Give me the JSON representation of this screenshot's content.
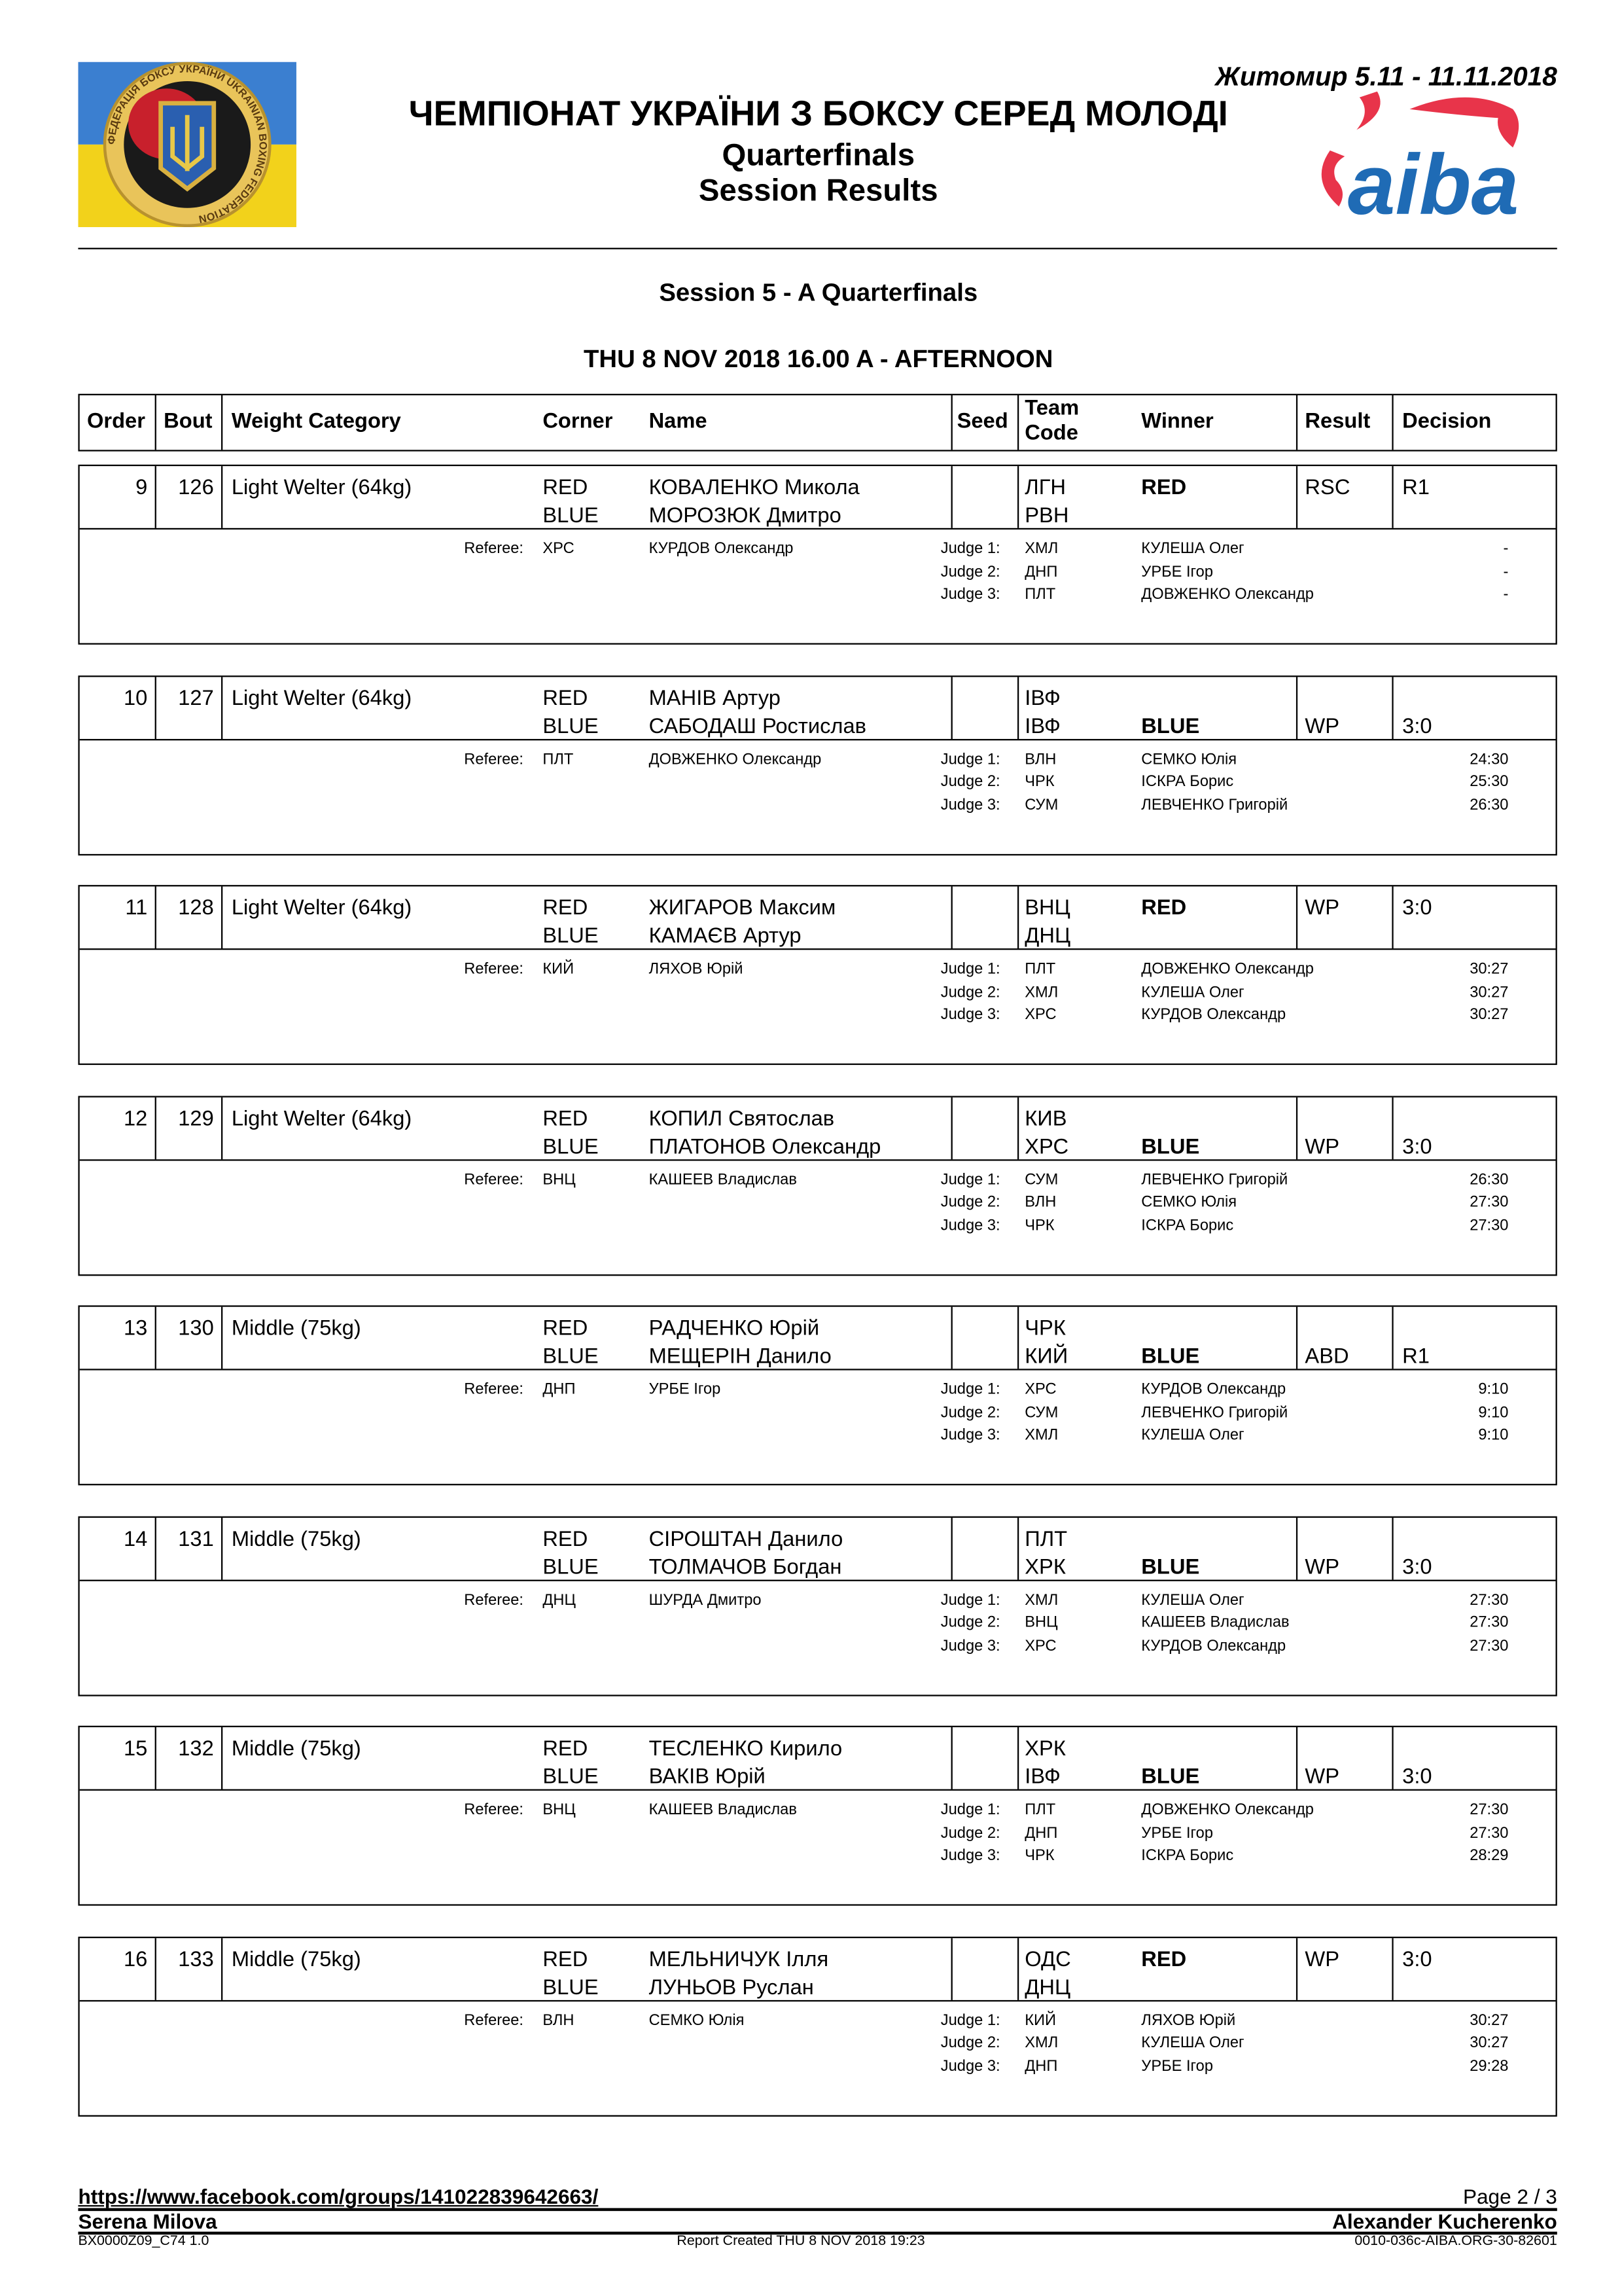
{
  "header": {
    "championship": "ЧЕМПІОНАТ УКРАЇНИ З БОКСУ СЕРЕД МОЛОДІ",
    "phase": "Quarterfinals",
    "report": "Session Results",
    "location_dates": "Житомир 5.11 - 11.11.2018",
    "left_logo_text": "ФЕДЕРАЦІЯ БОКСУ УКРАЇНИ UKRAINIAN BOXING FEDERATION",
    "right_logo_text": "aiba",
    "colors": {
      "aiba_red": "#e8344a",
      "aiba_blue": "#1f6bb5",
      "flag_blue": "#3b7fd0",
      "flag_yellow": "#f2d21b"
    }
  },
  "session": {
    "title": "Session 5 - A Quarterfinals",
    "datetime": "THU 8 NOV 2018  16.00 A - AFTERNOON"
  },
  "columns": {
    "order": "Order",
    "bout": "Bout",
    "weight": "Weight Category",
    "corner": "Corner",
    "name": "Name",
    "seed": "Seed",
    "team_code_1": "Team",
    "team_code_2": "Code",
    "winner": "Winner",
    "result": "Result",
    "decision": "Decision"
  },
  "labels": {
    "red": "RED",
    "blue": "BLUE",
    "referee": "Referee:"
  },
  "bouts": [
    {
      "order": "9",
      "bout": "126",
      "weight": "Light Welter (64kg)",
      "red": {
        "name": "КОВАЛЕНКО Микола",
        "team": "ЛГН"
      },
      "blue": {
        "name": "МОРОЗЮК Дмитро",
        "team": "РВН"
      },
      "winner": "RED",
      "result": "RSC",
      "decision": "R1",
      "referee": {
        "code": "ХРС",
        "name": "КУРДОВ Олександр"
      },
      "judges": [
        {
          "label": "Judge 1:",
          "code": "ХМЛ",
          "name": "КУЛЕША Олег",
          "score": "-"
        },
        {
          "label": "Judge 2:",
          "code": "ДНП",
          "name": "УРБЕ Ігор",
          "score": "-"
        },
        {
          "label": "Judge 3:",
          "code": "ПЛТ",
          "name": "ДОВЖЕНКО Олександр",
          "score": "-"
        }
      ]
    },
    {
      "order": "10",
      "bout": "127",
      "weight": "Light Welter (64kg)",
      "red": {
        "name": "МАНІВ Артур",
        "team": "ІВФ"
      },
      "blue": {
        "name": "САБОДАШ Ростислав",
        "team": "ІВФ"
      },
      "winner": "BLUE",
      "result": "WP",
      "decision": "3:0",
      "referee": {
        "code": "ПЛТ",
        "name": "ДОВЖЕНКО Олександр"
      },
      "judges": [
        {
          "label": "Judge 1:",
          "code": "ВЛН",
          "name": "СЕМКО Юлія",
          "score": "24:30"
        },
        {
          "label": "Judge 2:",
          "code": "ЧРК",
          "name": "ІСКРА Борис",
          "score": "25:30"
        },
        {
          "label": "Judge 3:",
          "code": "СУМ",
          "name": "ЛЕВЧЕНКО Григорій",
          "score": "26:30"
        }
      ]
    },
    {
      "order": "11",
      "bout": "128",
      "weight": "Light Welter (64kg)",
      "red": {
        "name": "ЖИГАРОВ Максим",
        "team": "ВНЦ"
      },
      "blue": {
        "name": "КАМАЄВ Артур",
        "team": "ДНЦ"
      },
      "winner": "RED",
      "result": "WP",
      "decision": "3:0",
      "referee": {
        "code": "КИЙ",
        "name": "ЛЯХОВ Юрій"
      },
      "judges": [
        {
          "label": "Judge 1:",
          "code": "ПЛТ",
          "name": "ДОВЖЕНКО Олександр",
          "score": "30:27"
        },
        {
          "label": "Judge 2:",
          "code": "ХМЛ",
          "name": "КУЛЕША Олег",
          "score": "30:27"
        },
        {
          "label": "Judge 3:",
          "code": "ХРС",
          "name": "КУРДОВ Олександр",
          "score": "30:27"
        }
      ]
    },
    {
      "order": "12",
      "bout": "129",
      "weight": "Light Welter (64kg)",
      "red": {
        "name": "КОПИЛ Святослав",
        "team": "КИВ"
      },
      "blue": {
        "name": "ПЛАТОНОВ Олександр",
        "team": "ХРС"
      },
      "winner": "BLUE",
      "result": "WP",
      "decision": "3:0",
      "referee": {
        "code": "ВНЦ",
        "name": "КАШЕЕВ Владислав"
      },
      "judges": [
        {
          "label": "Judge 1:",
          "code": "СУМ",
          "name": "ЛЕВЧЕНКО Григорій",
          "score": "26:30"
        },
        {
          "label": "Judge 2:",
          "code": "ВЛН",
          "name": "СЕМКО Юлія",
          "score": "27:30"
        },
        {
          "label": "Judge 3:",
          "code": "ЧРК",
          "name": "ІСКРА Борис",
          "score": "27:30"
        }
      ]
    },
    {
      "order": "13",
      "bout": "130",
      "weight": "Middle (75kg)",
      "red": {
        "name": "РАДЧЕНКО Юрій",
        "team": "ЧРК"
      },
      "blue": {
        "name": "МЕЩЕРІН Данило",
        "team": "КИЙ"
      },
      "winner": "BLUE",
      "result": "ABD",
      "decision": "R1",
      "referee": {
        "code": "ДНП",
        "name": "УРБЕ Ігор"
      },
      "judges": [
        {
          "label": "Judge 1:",
          "code": "ХРС",
          "name": "КУРДОВ Олександр",
          "score": "9:10"
        },
        {
          "label": "Judge 2:",
          "code": "СУМ",
          "name": "ЛЕВЧЕНКО Григорій",
          "score": "9:10"
        },
        {
          "label": "Judge 3:",
          "code": "ХМЛ",
          "name": "КУЛЕША Олег",
          "score": "9:10"
        }
      ]
    },
    {
      "order": "14",
      "bout": "131",
      "weight": "Middle (75kg)",
      "red": {
        "name": "СІРОШТАН Данило",
        "team": "ПЛТ"
      },
      "blue": {
        "name": "ТОЛМАЧОВ Богдан",
        "team": "ХРК"
      },
      "winner": "BLUE",
      "result": "WP",
      "decision": "3:0",
      "referee": {
        "code": "ДНЦ",
        "name": "ШУРДА Дмитро"
      },
      "judges": [
        {
          "label": "Judge 1:",
          "code": "ХМЛ",
          "name": "КУЛЕША Олег",
          "score": "27:30"
        },
        {
          "label": "Judge 2:",
          "code": "ВНЦ",
          "name": "КАШЕЕВ Владислав",
          "score": "27:30"
        },
        {
          "label": "Judge 3:",
          "code": "ХРС",
          "name": "КУРДОВ Олександр",
          "score": "27:30"
        }
      ]
    },
    {
      "order": "15",
      "bout": "132",
      "weight": "Middle (75kg)",
      "red": {
        "name": "ТЕСЛЕНКО Кирило",
        "team": "ХРК"
      },
      "blue": {
        "name": "ВАКІВ Юрій",
        "team": "ІВФ"
      },
      "winner": "BLUE",
      "result": "WP",
      "decision": "3:0",
      "referee": {
        "code": "ВНЦ",
        "name": "КАШЕЕВ Владислав"
      },
      "judges": [
        {
          "label": "Judge 1:",
          "code": "ПЛТ",
          "name": "ДОВЖЕНКО Олександр",
          "score": "27:30"
        },
        {
          "label": "Judge 2:",
          "code": "ДНП",
          "name": "УРБЕ Ігор",
          "score": "27:30"
        },
        {
          "label": "Judge 3:",
          "code": "ЧРК",
          "name": "ІСКРА Борис",
          "score": "28:29"
        }
      ]
    },
    {
      "order": "16",
      "bout": "133",
      "weight": "Middle (75kg)",
      "red": {
        "name": "МЕЛЬНИЧУК Ілля",
        "team": "ОДС"
      },
      "blue": {
        "name": "ЛУНЬОВ Руслан",
        "team": "ДНЦ"
      },
      "winner": "RED",
      "result": "WP",
      "decision": "3:0",
      "referee": {
        "code": "ВЛН",
        "name": "СЕМКО Юлія"
      },
      "judges": [
        {
          "label": "Judge 1:",
          "code": "КИЙ",
          "name": "ЛЯХОВ Юрій",
          "score": "30:27"
        },
        {
          "label": "Judge 2:",
          "code": "ХМЛ",
          "name": "КУЛЕША Олег",
          "score": "30:27"
        },
        {
          "label": "Judge 3:",
          "code": "ДНП",
          "name": "УРБЕ Ігор",
          "score": "29:28"
        }
      ]
    }
  ],
  "footer": {
    "link": "https://www.facebook.com/groups/141022839642663/",
    "page": "Page 2 / 3",
    "left_name": "Serena Milova",
    "right_name": "Alexander Kucherenko",
    "doc_code": "BX0000Z09_C74 1.0",
    "report_created": "Report Created  THU 8 NOV 2018 19:23",
    "doc_id": "0010-036c-AIBA.ORG-30-82601"
  }
}
